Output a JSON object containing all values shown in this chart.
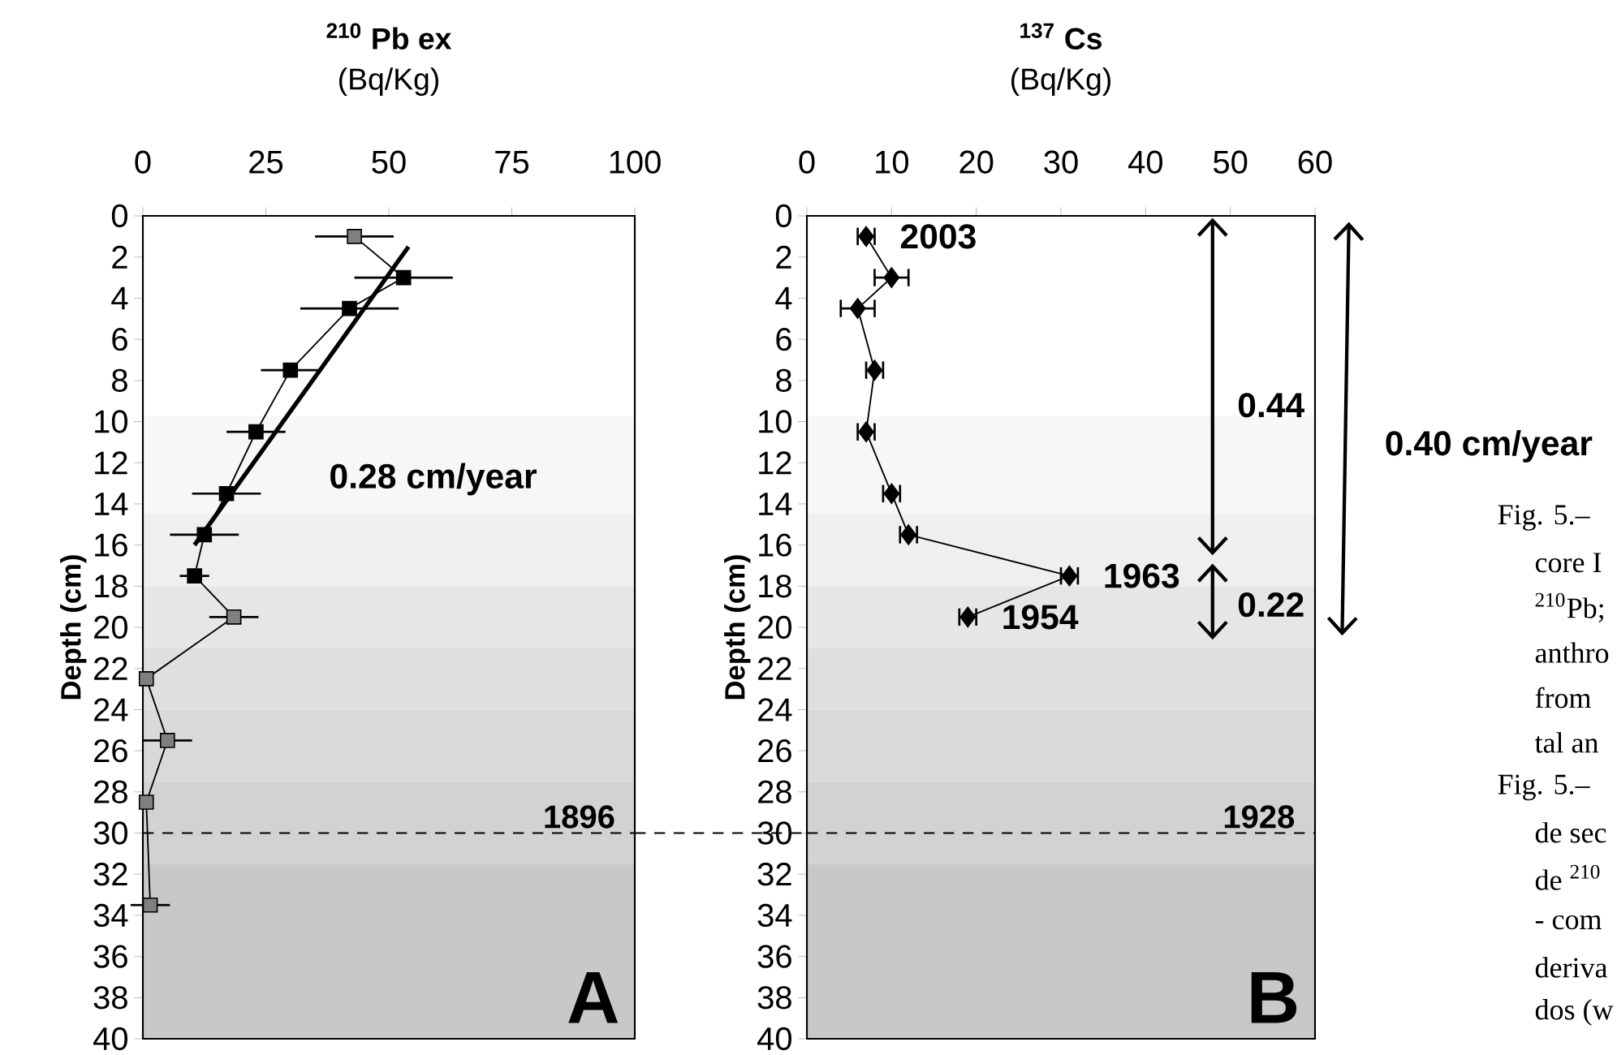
{
  "chart_data": [
    {
      "type": "line",
      "title": "$^{210}$ Pb ex",
      "xlabel": "(Bq/Kg)",
      "ylabel": "Depth (cm)",
      "xlim": [
        0,
        100
      ],
      "xticks": [
        0,
        25,
        50,
        75,
        100
      ],
      "ylim": [
        40,
        0
      ],
      "yticks": [
        0,
        2,
        4,
        6,
        8,
        10,
        12,
        14,
        16,
        18,
        20,
        22,
        24,
        26,
        28,
        30,
        32,
        34,
        36,
        38,
        40
      ],
      "marker": "square",
      "series": [
        {
          "type": "line",
          "color": "#000000",
          "x": [
            43,
            53,
            42,
            30,
            23,
            17,
            12.5,
            10.5,
            18.5,
            0.7,
            5,
            0.7,
            1.5
          ],
          "values": [
            1,
            3,
            4.5,
            7.5,
            10.5,
            13.5,
            15.5,
            17.5,
            19.5,
            22.5,
            25.5,
            28.5,
            33.5
          ],
          "colors": [
            "#808080",
            "#000000",
            "#000000",
            "#000000",
            "#000000",
            "#000000",
            "#000000",
            "#000000",
            "#808080",
            "#808080",
            "#808080",
            "#808080",
            "#808080"
          ],
          "xerrors": [
            8,
            10,
            10,
            6,
            6,
            7,
            7,
            3,
            5,
            null,
            5,
            null,
            4
          ]
        },
        {
          "type": "line",
          "color": "#000000",
          "marker": "none",
          "x": [
            54,
            10.5
          ],
          "values": [
            1.5,
            16
          ]
        }
      ],
      "ref_lines": [
        {
          "axis": "y",
          "value": 30,
          "line_style": "dashed",
          "color": "#000000"
        }
      ],
      "bands": [
        {
          "axis": "y",
          "from": 9.75,
          "to": 14.5,
          "color": "#f7f7f7"
        },
        {
          "axis": "y",
          "from": 14.5,
          "to": 18,
          "color": "#efefef"
        },
        {
          "axis": "y",
          "from": 18,
          "to": 21,
          "color": "#e6e6e6"
        },
        {
          "axis": "y",
          "from": 21,
          "to": 24,
          "color": "#dfdfdf"
        },
        {
          "axis": "y",
          "from": 24,
          "to": 27.5,
          "color": "#d9d9d9"
        },
        {
          "axis": "y",
          "from": 27.5,
          "to": 31.5,
          "color": "#d2d2d2"
        },
        {
          "axis": "y",
          "from": 31.5,
          "to": 40,
          "color": "#c8c8c8"
        }
      ],
      "annotations": [
        "0.28 cm/year",
        "A",
        {
          "text": "1896",
          "y": 30
        }
      ]
    },
    {
      "type": "line",
      "title": "$^{137}$ Cs",
      "xlabel": "(Bq/Kg)",
      "ylabel": "Depth (cm)",
      "xlim": [
        0,
        60
      ],
      "xticks": [
        0,
        10,
        20,
        30,
        40,
        50,
        60
      ],
      "ylim": [
        40,
        0
      ],
      "yticks": [
        0,
        2,
        4,
        6,
        8,
        10,
        12,
        14,
        16,
        18,
        20,
        22,
        24,
        26,
        28,
        30,
        32,
        34,
        36,
        38,
        40
      ],
      "marker": "diamond",
      "series": [
        {
          "type": "line",
          "color": "#000000",
          "x": [
            7,
            10,
            6,
            8,
            7,
            10,
            12,
            31,
            19
          ],
          "values": [
            1,
            3,
            4.5,
            7.5,
            10.5,
            13.5,
            15.5,
            17.5,
            19.5
          ],
          "xerrors": [
            1,
            2,
            2,
            1,
            1,
            1,
            1,
            1,
            1
          ]
        }
      ],
      "ref_lines": [
        {
          "axis": "y",
          "value": 30,
          "line_style": "dashed",
          "color": "#000000"
        }
      ],
      "bands": [
        {
          "axis": "y",
          "from": 9.75,
          "to": 14.5,
          "color": "#f7f7f7"
        },
        {
          "axis": "y",
          "from": 14.5,
          "to": 18,
          "color": "#efefef"
        },
        {
          "axis": "y",
          "from": 18,
          "to": 21,
          "color": "#e6e6e6"
        },
        {
          "axis": "y",
          "from": 21,
          "to": 24,
          "color": "#dfdfdf"
        },
        {
          "axis": "y",
          "from": 24,
          "to": 27.5,
          "color": "#d9d9d9"
        },
        {
          "axis": "y",
          "from": 27.5,
          "to": 31.5,
          "color": "#d2d2d2"
        },
        {
          "axis": "y",
          "from": 31.5,
          "to": 40,
          "color": "#c8c8c8"
        }
      ],
      "annotations": [
        {
          "text": "2003",
          "x": 7,
          "y": 1
        },
        {
          "text": "1963",
          "x": 31,
          "y": 17.5
        },
        {
          "text": "1954",
          "x": 19,
          "y": 19.5
        },
        "0.44",
        "0.22",
        "0.40 cm/year",
        "B",
        {
          "text": "1928",
          "y": 30
        }
      ]
    },
    {
      "type": "other",
      "annotations": [
        "Fig. 5.–",
        "core I",
        "$^{210}$Pb;",
        "anthro",
        "from",
        "tal an",
        "Fig. 5.–",
        "de sec",
        "de $^{210}$",
        "- com",
        "deriva",
        "dos (w"
      ]
    }
  ]
}
